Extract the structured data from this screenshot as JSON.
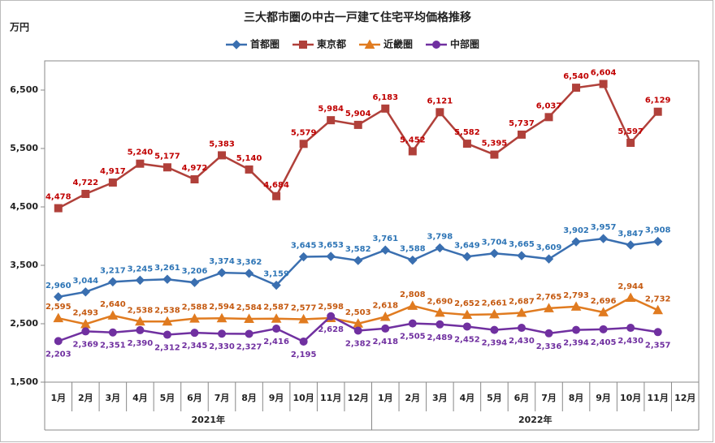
{
  "chart_data": {
    "type": "line",
    "title": "三大都市圏の中古一戸建て住宅平均価格推移",
    "y_unit": "万円",
    "categories": [
      "1月",
      "2月",
      "3月",
      "4月",
      "5月",
      "6月",
      "7月",
      "8月",
      "9月",
      "10月",
      "11月",
      "12月",
      "1月",
      "2月",
      "3月",
      "4月",
      "5月",
      "6月",
      "7月",
      "8月",
      "9月",
      "10月",
      "11月",
      "12月"
    ],
    "year_labels": [
      "2021年",
      "2022年"
    ],
    "ylim": [
      1500,
      7000
    ],
    "yticks": [
      {
        "value": 1500,
        "label": "1,500"
      },
      {
        "value": 2500,
        "label": "2,500"
      },
      {
        "value": 3500,
        "label": "3,500"
      },
      {
        "value": 4500,
        "label": "4,500"
      },
      {
        "value": 5500,
        "label": "5,500"
      },
      {
        "value": 6500,
        "label": "6,500"
      }
    ],
    "series": [
      {
        "name": "首都圏",
        "color": "#3a6fb0",
        "label_color": "#2e75b6",
        "marker": "diamond",
        "label_position": "above",
        "values": [
          2960,
          3044,
          3217,
          3245,
          3261,
          3206,
          3374,
          3362,
          3159,
          3645,
          3653,
          3582,
          3761,
          3588,
          3798,
          3649,
          3704,
          3665,
          3609,
          3902,
          3957,
          3847,
          3908,
          null
        ],
        "value_labels": [
          "2,960",
          "3,044",
          "3,217",
          "3,245",
          "3,261",
          "3,206",
          "3,374",
          "3,362",
          "3,159",
          "3,645",
          "3,653",
          "3,582",
          "3,761",
          "3,588",
          "3,798",
          "3,649",
          "3,704",
          "3,665",
          "3,609",
          "3,902",
          "3,957",
          "3,847",
          "3,908",
          null
        ]
      },
      {
        "name": "東京都",
        "color": "#b0403a",
        "label_color": "#c00000",
        "marker": "square",
        "label_position": "above",
        "values": [
          4478,
          4722,
          4917,
          5240,
          5177,
          4972,
          5383,
          5140,
          4684,
          5579,
          5984,
          5904,
          6183,
          5452,
          6121,
          5582,
          5395,
          5737,
          6037,
          6540,
          6604,
          5597,
          6129,
          null
        ],
        "value_labels": [
          "4,478",
          "4,722",
          "4,917",
          "5,240",
          "5,177",
          "4,972",
          "5,383",
          "5,140",
          "4,684",
          "5,579",
          "5,984",
          "5,904",
          "6,183",
          "5,452",
          "6,121",
          "5,582",
          "5,395",
          "5,737",
          "6,037",
          "6,540",
          "6,604",
          "5,597",
          "6,129",
          null
        ]
      },
      {
        "name": "近畿圏",
        "color": "#e07b20",
        "label_color": "#c55a11",
        "marker": "triangle",
        "label_position": "above",
        "values": [
          2595,
          2493,
          2640,
          2538,
          2538,
          2588,
          2594,
          2584,
          2587,
          2577,
          2598,
          2503,
          2618,
          2808,
          2690,
          2652,
          2661,
          2687,
          2765,
          2793,
          2696,
          2944,
          2732,
          null
        ],
        "value_labels": [
          "2,595",
          "2,493",
          "2,640",
          "2,538",
          "2,538",
          "2,588",
          "2,594",
          "2,584",
          "2,587",
          "2,577",
          "2,598",
          "2,503",
          "2,618",
          "2,808",
          "2,690",
          "2,652",
          "2,661",
          "2,687",
          "2,765",
          "2,793",
          "2,696",
          "2,944",
          "2,732",
          null
        ]
      },
      {
        "name": "中部圏",
        "color": "#7030a0",
        "label_color": "#7030a0",
        "marker": "circle",
        "label_position": "below",
        "values": [
          2203,
          2369,
          2351,
          2390,
          2312,
          2345,
          2330,
          2327,
          2416,
          2195,
          2628,
          2382,
          2418,
          2505,
          2489,
          2452,
          2394,
          2430,
          2336,
          2394,
          2405,
          2430,
          2357,
          null
        ],
        "value_labels": [
          "2,203",
          "2,369",
          "2,351",
          "2,390",
          "2,312",
          "2,345",
          "2,330",
          "2,327",
          "2,416",
          "2,195",
          "2,628",
          "2,382",
          "2,418",
          "2,505",
          "2,489",
          "2,452",
          "2,394",
          "2,430",
          "2,336",
          "2,394",
          "2,405",
          "2,430",
          "2,357",
          null
        ]
      }
    ]
  }
}
